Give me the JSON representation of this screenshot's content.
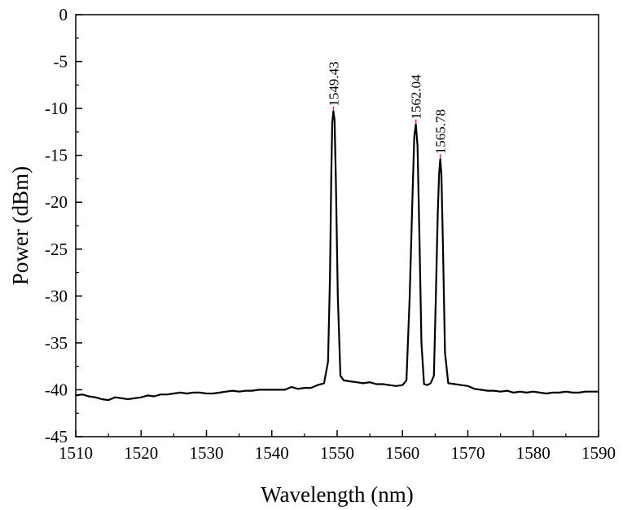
{
  "chart_data": {
    "type": "line",
    "title": "",
    "xlabel": "Wavelength (nm)",
    "ylabel": "Power (dBm)",
    "xlim": [
      1510,
      1590
    ],
    "ylim": [
      -45,
      0
    ],
    "xticks": [
      1510,
      1520,
      1530,
      1540,
      1550,
      1560,
      1570,
      1580,
      1590
    ],
    "yticks": [
      0,
      -5,
      -10,
      -15,
      -20,
      -25,
      -30,
      -35,
      -40,
      -45
    ],
    "xtick_labels": [
      "1510",
      "1520",
      "1530",
      "1540",
      "1550",
      "1560",
      "1570",
      "1580",
      "1590"
    ],
    "ytick_labels": [
      "0",
      "-5",
      "-10",
      "-15",
      "-20",
      "-25",
      "-30",
      "-35",
      "-40",
      "-45"
    ],
    "grid": false,
    "legend": "none",
    "line_color": "#000000",
    "peak_marker_color": "#e0302a",
    "annotations": [
      {
        "text": "1549.43",
        "x": 1549.43,
        "y": -10.3
      },
      {
        "text": "1562.04",
        "x": 1562.04,
        "y": -11.7
      },
      {
        "text": "1565.78",
        "x": 1565.78,
        "y": -15.4
      }
    ],
    "series": [
      {
        "x": [
          1510,
          1511,
          1512,
          1513,
          1514,
          1515,
          1516,
          1517,
          1518,
          1519,
          1520,
          1521,
          1522,
          1523,
          1524,
          1525,
          1526,
          1527,
          1528,
          1529,
          1530,
          1531,
          1532,
          1533,
          1534,
          1535,
          1536,
          1537,
          1538,
          1539,
          1540,
          1541,
          1542,
          1543,
          1544,
          1545,
          1546,
          1547,
          1548,
          1548.6,
          1548.9,
          1549.1,
          1549.25,
          1549.43,
          1549.6,
          1549.8,
          1550.1,
          1550.5,
          1551,
          1552,
          1553,
          1554,
          1555,
          1556,
          1557,
          1558,
          1559,
          1560,
          1560.6,
          1561.1,
          1561.5,
          1561.8,
          1562.04,
          1562.3,
          1562.6,
          1562.9,
          1563.3,
          1563.8,
          1564.3,
          1564.8,
          1565.1,
          1565.4,
          1565.6,
          1565.78,
          1565.95,
          1566.2,
          1566.5,
          1567,
          1568,
          1569,
          1570,
          1571,
          1572,
          1573,
          1574,
          1575,
          1576,
          1577,
          1578,
          1579,
          1580,
          1581,
          1582,
          1583,
          1584,
          1585,
          1586,
          1587,
          1588,
          1589,
          1590
        ],
        "values": [
          -40.6,
          -40.5,
          -40.7,
          -40.8,
          -41.0,
          -41.1,
          -40.8,
          -40.9,
          -41.0,
          -40.9,
          -40.8,
          -40.6,
          -40.7,
          -40.5,
          -40.5,
          -40.4,
          -40.3,
          -40.4,
          -40.3,
          -40.3,
          -40.4,
          -40.4,
          -40.3,
          -40.2,
          -40.1,
          -40.2,
          -40.1,
          -40.1,
          -40.0,
          -40.0,
          -40.0,
          -40.0,
          -40.0,
          -39.7,
          -39.9,
          -39.8,
          -39.8,
          -39.5,
          -39.3,
          -37.0,
          -28.0,
          -17.0,
          -11.5,
          -10.3,
          -11.2,
          -17.5,
          -30.0,
          -38.5,
          -39.0,
          -39.1,
          -39.2,
          -39.3,
          -39.2,
          -39.4,
          -39.4,
          -39.5,
          -39.6,
          -39.5,
          -39.0,
          -30.0,
          -20.0,
          -13.0,
          -11.7,
          -14.0,
          -24.0,
          -35.0,
          -39.4,
          -39.5,
          -39.3,
          -38.5,
          -30.0,
          -21.0,
          -17.0,
          -15.4,
          -17.0,
          -25.0,
          -36.0,
          -39.3,
          -39.4,
          -39.5,
          -39.6,
          -39.9,
          -40.0,
          -40.1,
          -40.1,
          -40.2,
          -40.1,
          -40.3,
          -40.2,
          -40.3,
          -40.2,
          -40.3,
          -40.4,
          -40.3,
          -40.3,
          -40.2,
          -40.3,
          -40.3,
          -40.2,
          -40.2,
          -40.2
        ]
      }
    ]
  }
}
